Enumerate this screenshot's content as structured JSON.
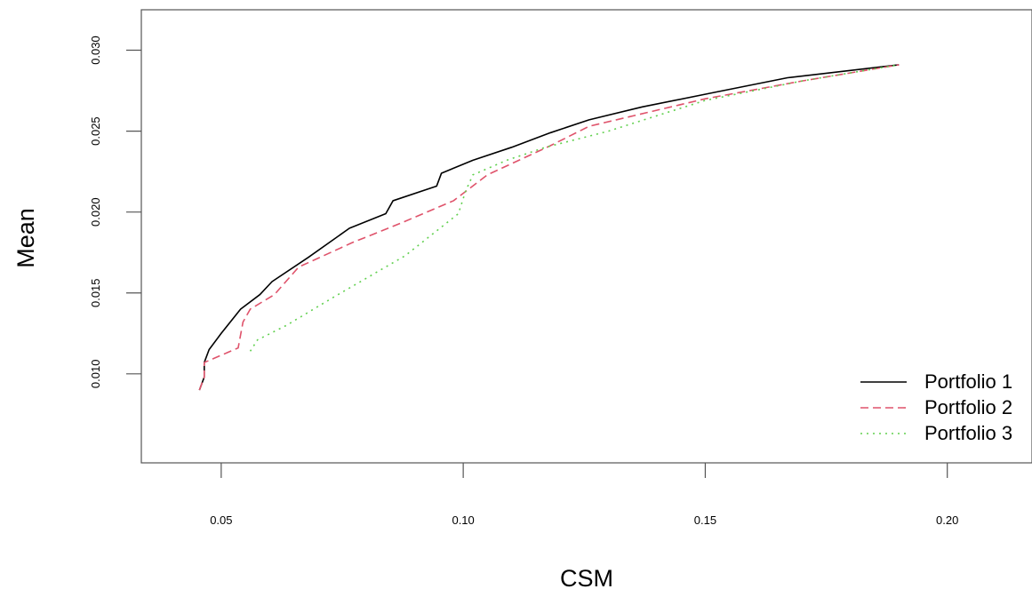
{
  "chart_data": {
    "type": "line",
    "title": "",
    "xlabel": "CSM",
    "ylabel": "Mean",
    "xlim": [
      0.0335,
      0.2175
    ],
    "ylim": [
      0.0045,
      0.0325
    ],
    "x_ticks": [
      0.05,
      0.1,
      0.15,
      0.2
    ],
    "x_tick_labels": [
      "0.05",
      "0.10",
      "0.15",
      "0.20"
    ],
    "y_ticks": [
      0.01,
      0.015,
      0.02,
      0.025,
      0.03
    ],
    "y_tick_labels": [
      "0.010",
      "0.015",
      "0.020",
      "0.025",
      "0.030"
    ],
    "grid": false,
    "legend_position": "bottom-right",
    "series": [
      {
        "name": "Portfolio 1",
        "color": "#000000",
        "dash": "solid",
        "points": [
          [
            0.0455,
            0.009
          ],
          [
            0.0465,
            0.0098
          ],
          [
            0.0465,
            0.0107
          ],
          [
            0.0475,
            0.0115
          ],
          [
            0.05,
            0.0125
          ],
          [
            0.054,
            0.014
          ],
          [
            0.058,
            0.0149
          ],
          [
            0.0605,
            0.0157
          ],
          [
            0.068,
            0.0172
          ],
          [
            0.0765,
            0.019
          ],
          [
            0.084,
            0.0199
          ],
          [
            0.0855,
            0.0207
          ],
          [
            0.0945,
            0.0216
          ],
          [
            0.0955,
            0.0224
          ],
          [
            0.102,
            0.0232
          ],
          [
            0.11,
            0.024
          ],
          [
            0.118,
            0.0249
          ],
          [
            0.126,
            0.0257
          ],
          [
            0.137,
            0.0265
          ],
          [
            0.152,
            0.0274
          ],
          [
            0.167,
            0.0283
          ],
          [
            0.19,
            0.0291
          ]
        ]
      },
      {
        "name": "Portfolio 2",
        "color": "#df536b",
        "dash": "dashed",
        "points": [
          [
            0.0455,
            0.009
          ],
          [
            0.0465,
            0.0098
          ],
          [
            0.0465,
            0.0107
          ],
          [
            0.0535,
            0.0116
          ],
          [
            0.0545,
            0.0132
          ],
          [
            0.056,
            0.014
          ],
          [
            0.061,
            0.0149
          ],
          [
            0.066,
            0.0166
          ],
          [
            0.077,
            0.0181
          ],
          [
            0.087,
            0.0193
          ],
          [
            0.098,
            0.0207
          ],
          [
            0.105,
            0.0223
          ],
          [
            0.118,
            0.0241
          ],
          [
            0.126,
            0.0253
          ],
          [
            0.15,
            0.027
          ],
          [
            0.17,
            0.0281
          ],
          [
            0.19,
            0.0291
          ]
        ]
      },
      {
        "name": "Portfolio 3",
        "color": "#61d04f",
        "dash": "dotted",
        "points": [
          [
            0.056,
            0.0114
          ],
          [
            0.0575,
            0.0121
          ],
          [
            0.0635,
            0.013
          ],
          [
            0.073,
            0.0147
          ],
          [
            0.088,
            0.0173
          ],
          [
            0.099,
            0.0199
          ],
          [
            0.1005,
            0.0213
          ],
          [
            0.102,
            0.0223
          ],
          [
            0.109,
            0.0232
          ],
          [
            0.117,
            0.024
          ],
          [
            0.13,
            0.025
          ],
          [
            0.15,
            0.0269
          ],
          [
            0.17,
            0.0281
          ],
          [
            0.19,
            0.0291
          ]
        ]
      }
    ]
  }
}
